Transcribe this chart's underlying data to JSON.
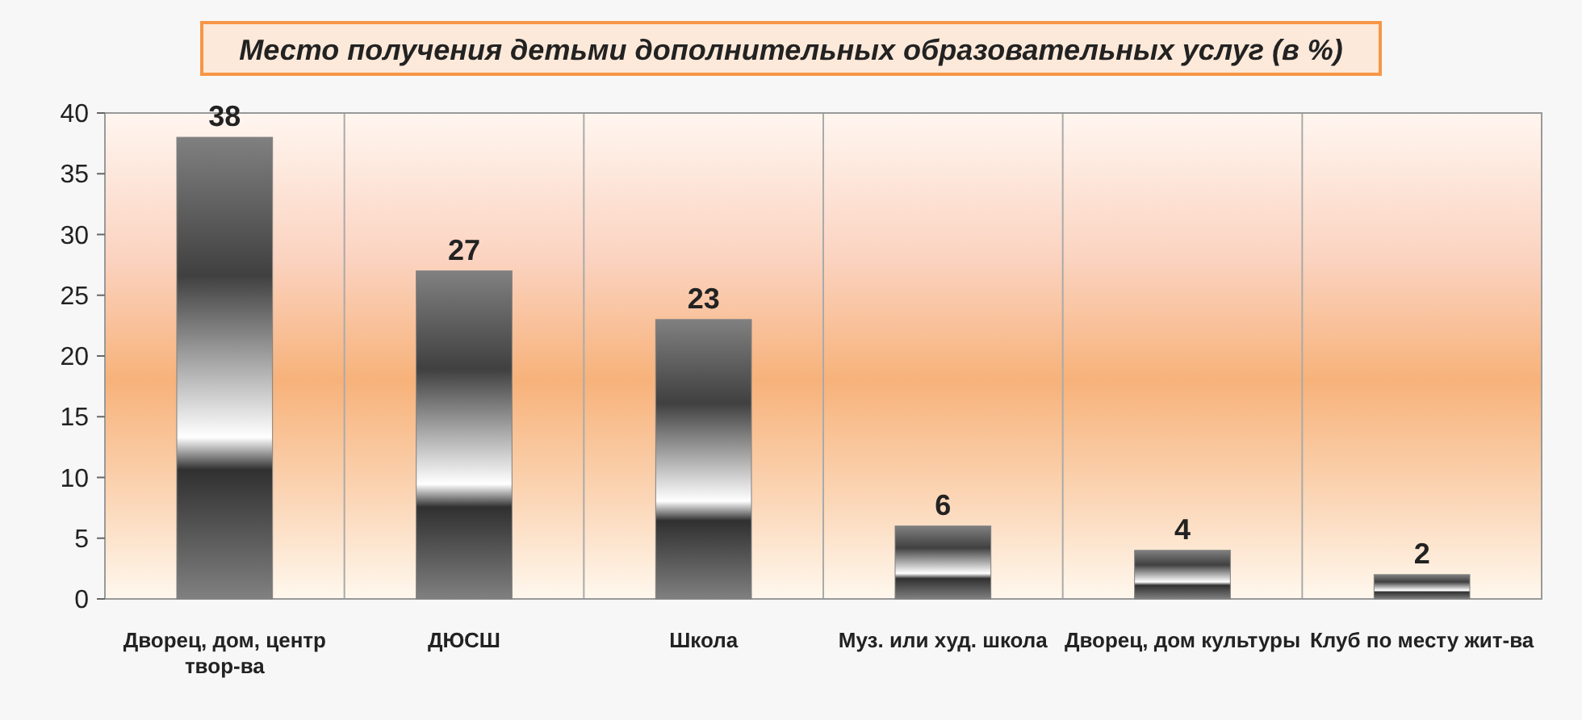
{
  "chart_data": {
    "type": "bar",
    "title": "Место получения детьми дополнительных образовательных услуг (в %)",
    "categories": [
      "Дворец, дом, центр твор-ва",
      "ДЮСШ",
      "Школа",
      "Муз. или худ. школа",
      "Дворец, дом культуры",
      "Клуб по месту жит-ва"
    ],
    "values": [
      38,
      27,
      23,
      6,
      4,
      2
    ],
    "color": "#808080",
    "ylim": [
      0,
      40
    ],
    "yticks": [
      0,
      5,
      10,
      15,
      20,
      25,
      30,
      35,
      40
    ],
    "grid": "x",
    "data_labels": true
  }
}
